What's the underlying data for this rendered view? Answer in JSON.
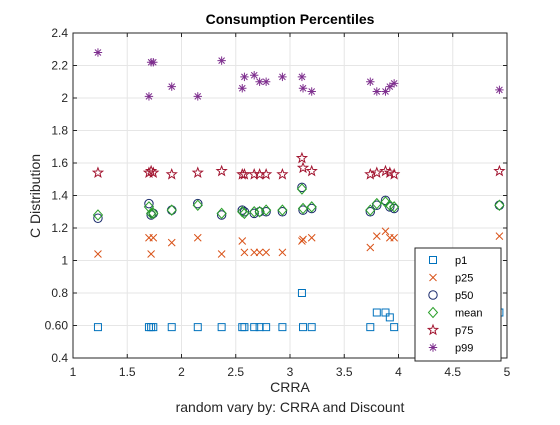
{
  "figure": {
    "background": "#ffffff",
    "axes_background": "#ffffff",
    "grid_color": "#e6e6e6",
    "axis_color": "#262626"
  },
  "chart_data": {
    "type": "scatter",
    "title": "Consumption Percentiles",
    "subtitle": "random vary by: CRRA and Discount",
    "xlabel": "CRRA",
    "ylabel": "C Distribution",
    "xlim": [
      1,
      5
    ],
    "ylim": [
      0.4,
      2.4
    ],
    "xticks": [
      1,
      1.5,
      2,
      2.5,
      3,
      3.5,
      4,
      4.5,
      5
    ],
    "xtick_labels": [
      "1",
      "1.5",
      "2",
      "2.5",
      "3",
      "3.5",
      "4",
      "4.5",
      "5"
    ],
    "yticks": [
      0.4,
      0.6,
      0.8,
      1,
      1.2,
      1.4,
      1.6,
      1.8,
      2,
      2.2,
      2.4
    ],
    "ytick_labels": [
      "0.4",
      "0.60",
      "0.8",
      "1",
      "1.2",
      "1.4",
      "1.6",
      "1.8",
      "2",
      "2.2",
      "2.4"
    ],
    "grid": true,
    "legend_position": "lower-right",
    "x": [
      1.23,
      1.7,
      1.72,
      1.74,
      1.91,
      2.15,
      2.37,
      2.56,
      2.58,
      2.67,
      2.72,
      2.78,
      2.93,
      3.11,
      3.12,
      3.2,
      3.74,
      3.8,
      3.88,
      3.92,
      3.96,
      4.93
    ],
    "series": [
      {
        "name": "p1",
        "marker": "square",
        "color": "#0072BD",
        "values": [
          0.59,
          0.59,
          0.59,
          0.59,
          0.59,
          0.59,
          0.59,
          0.59,
          0.59,
          0.59,
          0.59,
          0.59,
          0.59,
          0.8,
          0.59,
          0.59,
          0.59,
          0.68,
          0.68,
          0.65,
          0.59,
          0.68
        ]
      },
      {
        "name": "p25",
        "marker": "x",
        "color": "#D95319",
        "values": [
          1.04,
          1.14,
          1.04,
          1.14,
          1.11,
          1.14,
          1.04,
          1.12,
          1.05,
          1.05,
          1.05,
          1.05,
          1.05,
          1.12,
          1.13,
          1.14,
          1.08,
          1.15,
          1.18,
          1.14,
          1.14,
          1.15
        ]
      },
      {
        "name": "p50",
        "marker": "circle",
        "color": "#1a2a6c",
        "values": [
          1.26,
          1.35,
          1.28,
          1.29,
          1.31,
          1.35,
          1.28,
          1.31,
          1.3,
          1.29,
          1.3,
          1.3,
          1.3,
          1.45,
          1.31,
          1.32,
          1.3,
          1.34,
          1.37,
          1.33,
          1.32,
          1.34
        ]
      },
      {
        "name": "mean",
        "marker": "diamond",
        "color": "#2ca02c",
        "values": [
          1.28,
          1.33,
          1.29,
          1.29,
          1.31,
          1.34,
          1.29,
          1.3,
          1.29,
          1.3,
          1.3,
          1.31,
          1.31,
          1.44,
          1.32,
          1.33,
          1.31,
          1.35,
          1.36,
          1.34,
          1.33,
          1.34
        ]
      },
      {
        "name": "p75",
        "marker": "pentagram",
        "color": "#A2142F",
        "values": [
          1.54,
          1.54,
          1.55,
          1.54,
          1.53,
          1.54,
          1.55,
          1.53,
          1.53,
          1.53,
          1.53,
          1.53,
          1.53,
          1.63,
          1.57,
          1.55,
          1.53,
          1.54,
          1.55,
          1.54,
          1.53,
          1.55
        ]
      },
      {
        "name": "p99",
        "marker": "asterisk",
        "color": "#7E2F8E",
        "values": [
          2.28,
          2.01,
          2.22,
          2.22,
          2.07,
          2.01,
          2.23,
          2.06,
          2.13,
          2.14,
          2.1,
          2.1,
          2.13,
          2.13,
          2.06,
          2.04,
          2.1,
          2.04,
          2.04,
          2.07,
          2.09,
          2.05
        ]
      }
    ]
  }
}
